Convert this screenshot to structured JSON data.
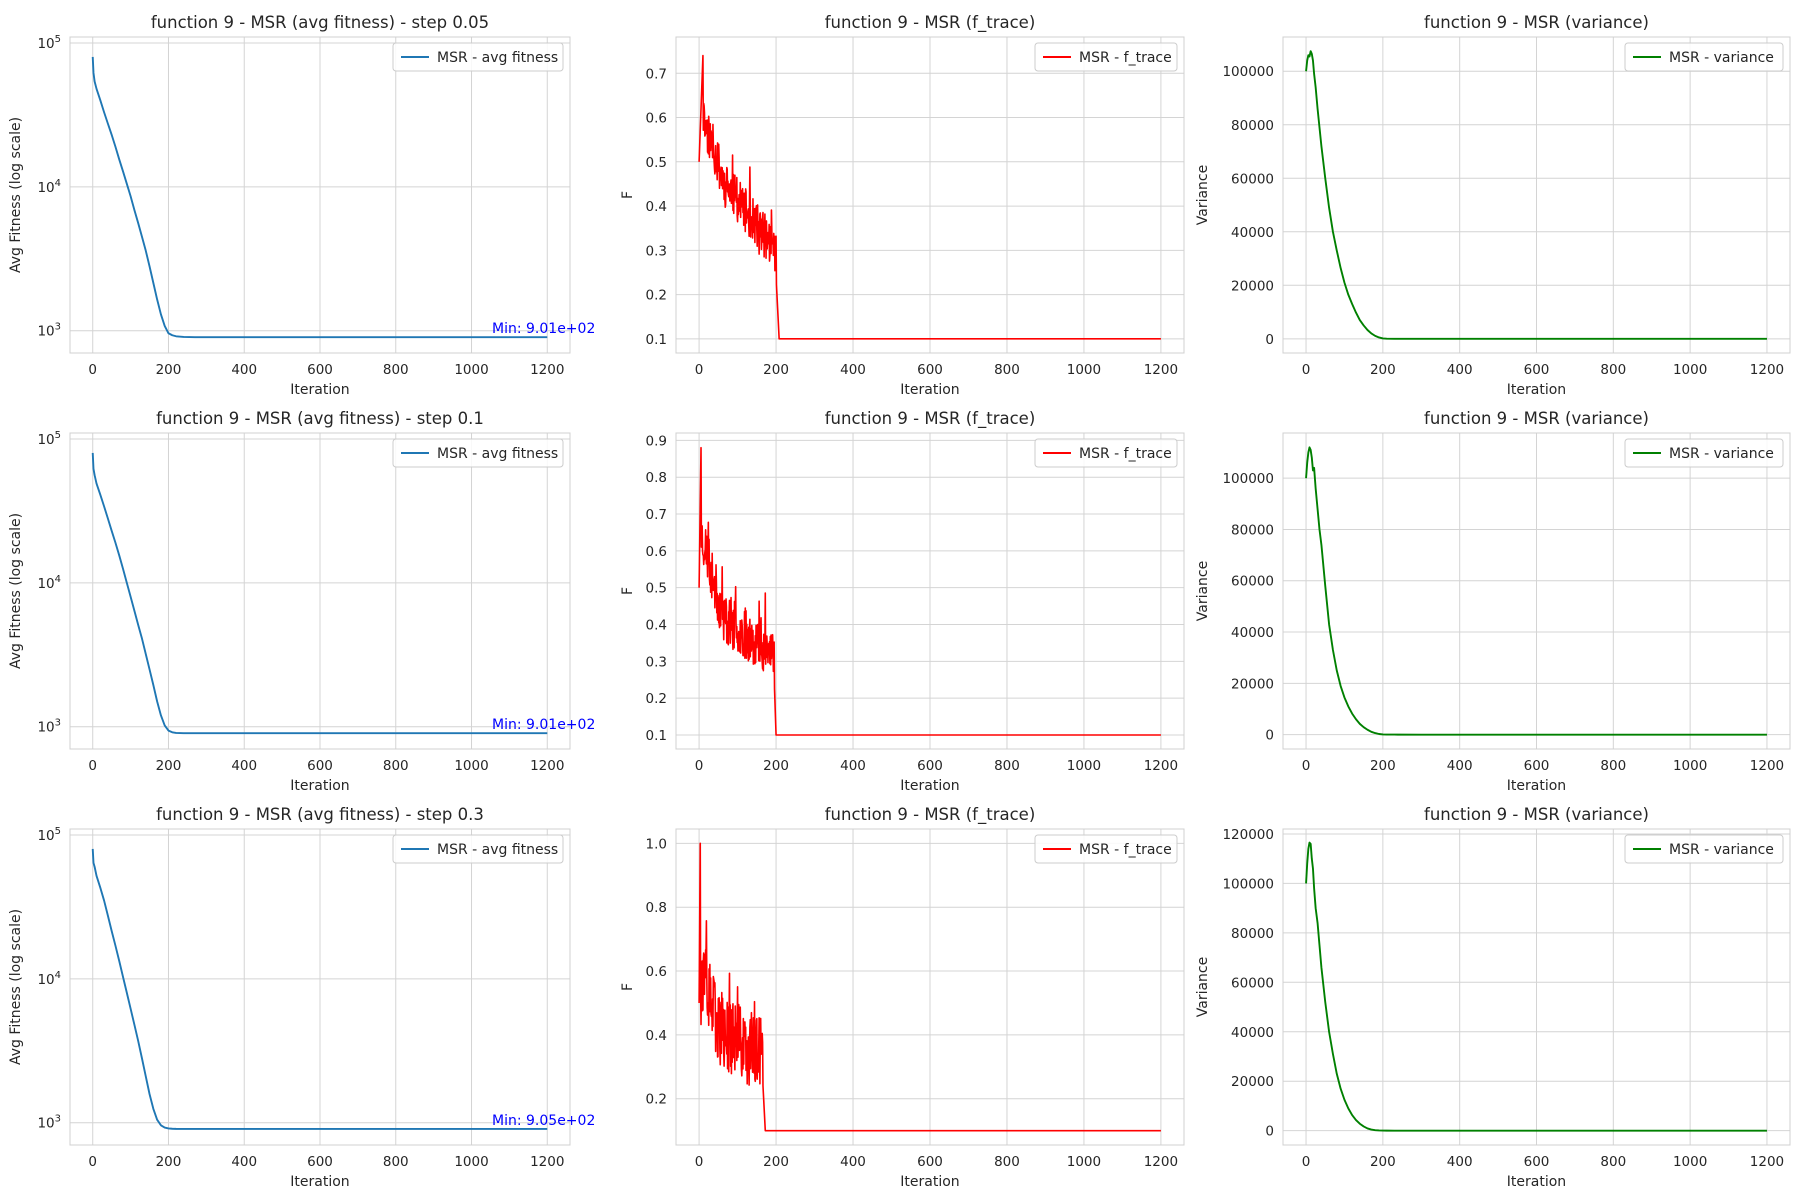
{
  "colors": {
    "avg_fitness": "#1f77b4",
    "f_trace": "#ff0000",
    "variance": "#008000",
    "annotation": "#0000ff",
    "plot_bg": "#ffffff",
    "grid": "#d4d4d4",
    "spine": "#d0d0d0"
  },
  "chart_data": [
    {
      "type": "line",
      "row": 0,
      "col": 0,
      "kind": "avg_fitness",
      "title": "function 9 - MSR (avg fitness) - step 0.05",
      "xlabel": "Iteration",
      "ylabel": "Avg Fitness (log scale)",
      "xlim": [
        -60,
        1260
      ],
      "ylim": [
        700,
        110000
      ],
      "yscale": "log",
      "xticks": [
        0,
        200,
        400,
        600,
        800,
        1000,
        1200
      ],
      "yticks": [
        1000,
        10000,
        100000
      ],
      "legend": "MSR - avg fitness",
      "legend_loc": "upper right",
      "grid": true,
      "annotation": "Min: 9.01e+02",
      "annotation_xy": [
        1070,
        950
      ],
      "series": [
        {
          "name": "MSR - avg fitness",
          "color": "#1f77b4",
          "x": [
            0,
            2,
            5,
            10,
            20,
            30,
            40,
            50,
            60,
            70,
            80,
            90,
            100,
            110,
            120,
            130,
            140,
            150,
            160,
            170,
            180,
            190,
            200,
            210,
            220,
            240,
            270,
            300,
            400,
            600,
            800,
            1000,
            1200
          ],
          "y": [
            80000,
            62000,
            54000,
            48000,
            40000,
            33000,
            27500,
            23000,
            19000,
            15500,
            12800,
            10500,
            8600,
            6900,
            5600,
            4500,
            3600,
            2800,
            2150,
            1650,
            1300,
            1080,
            960,
            930,
            915,
            905,
            902,
            901,
            901,
            901,
            901,
            901,
            901
          ]
        }
      ]
    },
    {
      "type": "line",
      "row": 0,
      "col": 1,
      "kind": "f_trace",
      "title": "function 9 - MSR (f_trace)",
      "xlabel": "Iteration",
      "ylabel": "F",
      "xlim": [
        -60,
        1260
      ],
      "ylim": [
        0.068,
        0.782
      ],
      "yscale": "linear",
      "xticks": [
        0,
        200,
        400,
        600,
        800,
        1000,
        1200
      ],
      "yticks": [
        0.1,
        0.2,
        0.3,
        0.4,
        0.5,
        0.6,
        0.7
      ],
      "legend": "MSR - f_trace",
      "legend_loc": "upper right",
      "grid": true,
      "noise": {
        "start": 0.5,
        "peak_x": 10,
        "peak": 0.74,
        "after_peak": 0.6,
        "mid": 0.45,
        "end": 0.3,
        "end_x": 200,
        "drop_x": 208,
        "floor": 0.1,
        "amp": 0.05,
        "seed": 11
      },
      "series": [
        {
          "name": "MSR - f_trace",
          "color": "#ff0000"
        }
      ]
    },
    {
      "type": "line",
      "row": 0,
      "col": 2,
      "kind": "variance",
      "title": "function 9 - MSR (variance)",
      "xlabel": "Iteration",
      "ylabel": "Variance",
      "xlim": [
        -60,
        1260
      ],
      "ylim": [
        -5300,
        112800
      ],
      "yscale": "linear",
      "xticks": [
        0,
        200,
        400,
        600,
        800,
        1000,
        1200
      ],
      "yticks": [
        0,
        20000,
        40000,
        60000,
        80000,
        100000
      ],
      "legend": "MSR - variance",
      "legend_loc": "upper right",
      "grid": true,
      "series": [
        {
          "name": "MSR - variance",
          "color": "#008000",
          "x": [
            0,
            3,
            6,
            9,
            12,
            15,
            18,
            21,
            25,
            30,
            35,
            40,
            50,
            60,
            70,
            80,
            90,
            100,
            110,
            120,
            130,
            140,
            150,
            160,
            170,
            180,
            190,
            200,
            210,
            230,
            300,
            600,
            900,
            1200
          ],
          "y": [
            100000,
            104000,
            106000,
            105500,
            107500,
            106500,
            104000,
            99000,
            94000,
            86000,
            79000,
            72000,
            60000,
            49000,
            40000,
            33000,
            26500,
            21000,
            16500,
            13000,
            9800,
            7000,
            5000,
            3300,
            2000,
            1100,
            500,
            150,
            60,
            20,
            0,
            0,
            0,
            0
          ]
        }
      ]
    },
    {
      "type": "line",
      "row": 1,
      "col": 0,
      "kind": "avg_fitness",
      "title": "function 9 - MSR (avg fitness) - step 0.1",
      "xlabel": "Iteration",
      "ylabel": "Avg Fitness (log scale)",
      "xlim": [
        -60,
        1260
      ],
      "ylim": [
        700,
        110000
      ],
      "yscale": "log",
      "xticks": [
        0,
        200,
        400,
        600,
        800,
        1000,
        1200
      ],
      "yticks": [
        1000,
        10000,
        100000
      ],
      "legend": "MSR - avg fitness",
      "legend_loc": "upper right",
      "grid": true,
      "annotation": "Min: 9.01e+02",
      "annotation_xy": [
        1070,
        950
      ],
      "series": [
        {
          "name": "MSR - avg fitness",
          "color": "#1f77b4",
          "x": [
            0,
            2,
            5,
            10,
            20,
            30,
            40,
            50,
            60,
            70,
            80,
            90,
            100,
            110,
            120,
            130,
            140,
            150,
            160,
            170,
            180,
            190,
            200,
            210,
            220,
            240,
            270,
            300,
            400,
            600,
            800,
            1000,
            1200
          ],
          "y": [
            80000,
            62000,
            56000,
            49000,
            41000,
            34000,
            28000,
            23000,
            19000,
            15500,
            12500,
            10000,
            8000,
            6400,
            5100,
            4100,
            3200,
            2500,
            1950,
            1500,
            1200,
            1020,
            940,
            915,
            905,
            902,
            901,
            901,
            901,
            901,
            901,
            901,
            901
          ]
        }
      ]
    },
    {
      "type": "line",
      "row": 1,
      "col": 1,
      "kind": "f_trace",
      "title": "function 9 - MSR (f_trace)",
      "xlabel": "Iteration",
      "ylabel": "F",
      "xlim": [
        -60,
        1260
      ],
      "ylim": [
        0.062,
        0.92
      ],
      "yscale": "linear",
      "xticks": [
        0,
        200,
        400,
        600,
        800,
        1000,
        1200
      ],
      "yticks": [
        0.1,
        0.2,
        0.3,
        0.4,
        0.5,
        0.6,
        0.7,
        0.8,
        0.9
      ],
      "legend": "MSR - f_trace",
      "legend_loc": "upper right",
      "grid": true,
      "noise": {
        "start": 0.5,
        "peak_x": 5,
        "peak": 0.88,
        "after_peak": 0.65,
        "mid": 0.42,
        "end": 0.32,
        "end_x": 195,
        "drop_x": 200,
        "floor": 0.1,
        "amp": 0.07,
        "seed": 23
      },
      "series": [
        {
          "name": "MSR - f_trace",
          "color": "#ff0000"
        }
      ]
    },
    {
      "type": "line",
      "row": 1,
      "col": 2,
      "kind": "variance",
      "title": "function 9 - MSR (variance)",
      "xlabel": "Iteration",
      "ylabel": "Variance",
      "xlim": [
        -60,
        1260
      ],
      "ylim": [
        -5600,
        117600
      ],
      "yscale": "linear",
      "xticks": [
        0,
        200,
        400,
        600,
        800,
        1000,
        1200
      ],
      "yticks": [
        0,
        20000,
        40000,
        60000,
        80000,
        100000
      ],
      "legend": "MSR - variance",
      "legend_loc": "upper right",
      "grid": true,
      "series": [
        {
          "name": "MSR - variance",
          "color": "#008000",
          "x": [
            0,
            3,
            6,
            9,
            12,
            15,
            18,
            21,
            25,
            30,
            35,
            40,
            50,
            60,
            70,
            80,
            90,
            100,
            110,
            120,
            130,
            140,
            150,
            160,
            170,
            180,
            190,
            200,
            210,
            230,
            300,
            600,
            900,
            1200
          ],
          "y": [
            100000,
            106000,
            110000,
            112000,
            111000,
            108000,
            103000,
            104000,
            96000,
            88000,
            80000,
            74000,
            58000,
            43000,
            33000,
            25000,
            19000,
            14500,
            11000,
            8200,
            6000,
            4200,
            2900,
            1900,
            1100,
            600,
            250,
            80,
            30,
            10,
            0,
            0,
            0,
            0
          ]
        }
      ]
    },
    {
      "type": "line",
      "row": 2,
      "col": 0,
      "kind": "avg_fitness",
      "title": "function 9 - MSR (avg fitness) - step 0.3",
      "xlabel": "Iteration",
      "ylabel": "Avg Fitness (log scale)",
      "xlim": [
        -60,
        1260
      ],
      "ylim": [
        700,
        110000
      ],
      "yscale": "log",
      "xticks": [
        0,
        200,
        400,
        600,
        800,
        1000,
        1200
      ],
      "yticks": [
        1000,
        10000,
        100000
      ],
      "legend": "MSR - avg fitness",
      "legend_loc": "upper right",
      "grid": true,
      "annotation": "Min: 9.05e+02",
      "annotation_xy": [
        1070,
        950
      ],
      "series": [
        {
          "name": "MSR - avg fitness",
          "color": "#1f77b4",
          "x": [
            0,
            2,
            5,
            10,
            20,
            30,
            40,
            50,
            60,
            70,
            80,
            90,
            100,
            110,
            120,
            130,
            140,
            150,
            160,
            170,
            180,
            190,
            200,
            210,
            220,
            240,
            270,
            300,
            400,
            600,
            800,
            1000,
            1200
          ],
          "y": [
            80000,
            64000,
            60000,
            52000,
            43000,
            35000,
            27500,
            21500,
            17000,
            13300,
            10300,
            8000,
            6200,
            4800,
            3700,
            2800,
            2100,
            1580,
            1250,
            1050,
            960,
            925,
            912,
            908,
            906,
            905,
            905,
            905,
            905,
            905,
            905,
            905,
            905
          ]
        }
      ]
    },
    {
      "type": "line",
      "row": 2,
      "col": 1,
      "kind": "f_trace",
      "title": "function 9 - MSR (f_trace)",
      "xlabel": "Iteration",
      "ylabel": "F",
      "xlim": [
        -60,
        1260
      ],
      "ylim": [
        0.055,
        1.045
      ],
      "yscale": "linear",
      "xticks": [
        0,
        200,
        400,
        600,
        800,
        1000,
        1200
      ],
      "yticks": [
        0.2,
        0.4,
        0.6,
        0.8,
        1.0
      ],
      "legend": "MSR - f_trace",
      "legend_loc": "upper right",
      "grid": true,
      "noise": {
        "start": 0.5,
        "peak_x": 3,
        "peak": 1.0,
        "after_peak": 0.6,
        "mid": 0.42,
        "end": 0.33,
        "end_x": 165,
        "drop_x": 172,
        "floor": 0.1,
        "amp": 0.12,
        "seed": 37
      },
      "series": [
        {
          "name": "MSR - f_trace",
          "color": "#ff0000"
        }
      ]
    },
    {
      "type": "line",
      "row": 2,
      "col": 2,
      "kind": "variance",
      "title": "function 9 - MSR (variance)",
      "xlabel": "Iteration",
      "ylabel": "Variance",
      "xlim": [
        -60,
        1260
      ],
      "ylim": [
        -5800,
        122000
      ],
      "yscale": "linear",
      "xticks": [
        0,
        200,
        400,
        600,
        800,
        1000,
        1200
      ],
      "yticks": [
        0,
        20000,
        40000,
        60000,
        80000,
        100000,
        120000
      ],
      "legend": "MSR - variance",
      "legend_loc": "upper right",
      "grid": true,
      "series": [
        {
          "name": "MSR - variance",
          "color": "#008000",
          "x": [
            0,
            3,
            6,
            9,
            12,
            15,
            18,
            21,
            25,
            30,
            35,
            40,
            50,
            60,
            70,
            80,
            90,
            100,
            110,
            120,
            130,
            140,
            150,
            160,
            170,
            180,
            190,
            200,
            210,
            230,
            300,
            600,
            900,
            1200
          ],
          "y": [
            100000,
            108000,
            114000,
            116500,
            116000,
            110000,
            106000,
            98000,
            90000,
            84000,
            75000,
            66000,
            52000,
            40000,
            31000,
            23000,
            17000,
            12500,
            9000,
            6300,
            4300,
            2800,
            1700,
            900,
            450,
            200,
            80,
            30,
            10,
            0,
            0,
            0,
            0,
            0
          ]
        }
      ]
    }
  ]
}
